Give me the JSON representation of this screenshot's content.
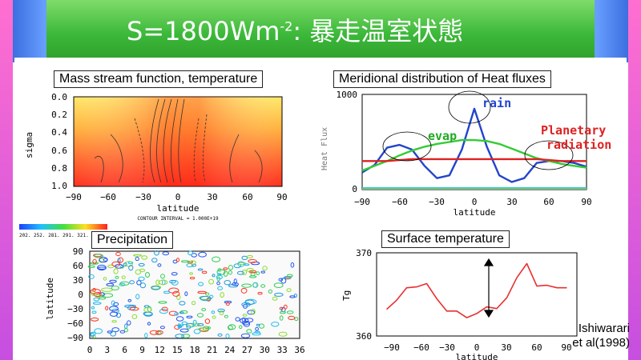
{
  "slide": {
    "title_prefix": "S=1800Wm",
    "title_exponent": "-2",
    "title_suffix": ": 暴走温室状態"
  },
  "panels": {
    "mass_stream": {
      "label": "Mass stream function, temperature",
      "x_ticks": [
        "−90",
        "−60",
        "−30",
        "0",
        "30",
        "60",
        "90"
      ],
      "y_ticks": [
        "0.0",
        "0.2",
        "0.4",
        "0.6",
        "0.8",
        "1.0"
      ],
      "xlabel": "latitude",
      "ylabel": "sigma",
      "contour_note": "CONTOUR INTERVAL = 1.000E+19"
    },
    "heat_flux": {
      "label": "Meridional distribution of Heat fluxes",
      "y_top": "1000",
      "y_zero": "0",
      "ylabel": "Heat Flux",
      "xlabel": "latitude",
      "x_ticks": [
        "−90",
        "−60",
        "−30",
        "0",
        "30",
        "60",
        "90"
      ],
      "annot_rain": "rain",
      "annot_evap": "evap",
      "annot_planetary": "Planetary",
      "annot_radiation": "radiation"
    },
    "precipitation": {
      "label": "Precipitation",
      "y_ticks": [
        "90",
        "60",
        "30",
        "0",
        "−30",
        "−60",
        "−90"
      ],
      "x_ticks": [
        "0",
        "3",
        "6",
        "9",
        "12",
        "15",
        "18",
        "21",
        "24",
        "27",
        "30",
        "33",
        "36"
      ],
      "ylabel": "latitude",
      "colorbar_text": "202. 252. 281. 291. 321."
    },
    "surface_temp": {
      "label": "Surface temperature",
      "y_top": "370",
      "y_bottom": "360",
      "ylabel": "Tg",
      "xlabel": "latitude",
      "x_ticks": [
        "−90",
        "−60",
        "−30",
        "0",
        "30",
        "60",
        "90"
      ]
    }
  },
  "credit": {
    "line1": "Ishiwarari",
    "line2": "et al(1998)"
  },
  "chart_data": [
    {
      "type": "line",
      "title": "Meridional distribution of Heat fluxes",
      "xlabel": "latitude",
      "ylabel": "Heat Flux",
      "xlim": [
        -90,
        90
      ],
      "ylim": [
        0,
        1000
      ],
      "x": [
        -90,
        -80,
        -70,
        -60,
        -50,
        -40,
        -30,
        -20,
        -10,
        0,
        10,
        20,
        30,
        40,
        50,
        60,
        70,
        80,
        90
      ],
      "series": [
        {
          "name": "rain",
          "color": "#2244cc",
          "values": [
            180,
            260,
            440,
            470,
            420,
            250,
            120,
            150,
            420,
            850,
            450,
            150,
            80,
            120,
            280,
            300,
            300,
            280,
            240
          ]
        },
        {
          "name": "evap",
          "color": "#33cc33",
          "values": [
            200,
            250,
            300,
            360,
            410,
            450,
            480,
            500,
            520,
            520,
            510,
            480,
            430,
            380,
            330,
            300,
            270,
            250,
            230
          ]
        },
        {
          "name": "Planetary radiation",
          "color": "#dd2222",
          "values": [
            300,
            300,
            300,
            310,
            320,
            320,
            320,
            320,
            320,
            320,
            320,
            320,
            320,
            320,
            320,
            310,
            300,
            300,
            300
          ]
        },
        {
          "color": "#ffaa00",
          "values": [
            10,
            10,
            10,
            10,
            10,
            10,
            10,
            10,
            10,
            10,
            10,
            10,
            10,
            10,
            10,
            10,
            10,
            10,
            10
          ]
        },
        {
          "color": "#33cccc",
          "values": [
            15,
            15,
            15,
            15,
            15,
            15,
            15,
            15,
            15,
            15,
            15,
            15,
            15,
            15,
            15,
            15,
            15,
            15,
            15
          ]
        }
      ]
    },
    {
      "type": "line",
      "title": "Surface temperature",
      "xlabel": "latitude",
      "ylabel": "Tg",
      "xlim": [
        -100,
        100
      ],
      "ylim": [
        360,
        370
      ],
      "x": [
        -90,
        -80,
        -70,
        -60,
        -50,
        -40,
        -30,
        -20,
        -10,
        0,
        10,
        20,
        30,
        40,
        50,
        60,
        70,
        80,
        90
      ],
      "series": [
        {
          "color": "#e83030",
          "values": [
            363.2,
            364.3,
            365.8,
            365.9,
            366.3,
            364.5,
            363.0,
            363.0,
            362.2,
            362.7,
            363.5,
            363.3,
            364.6,
            367.0,
            368.7,
            366.0,
            366.1,
            365.8,
            365.8
          ]
        }
      ]
    }
  ]
}
